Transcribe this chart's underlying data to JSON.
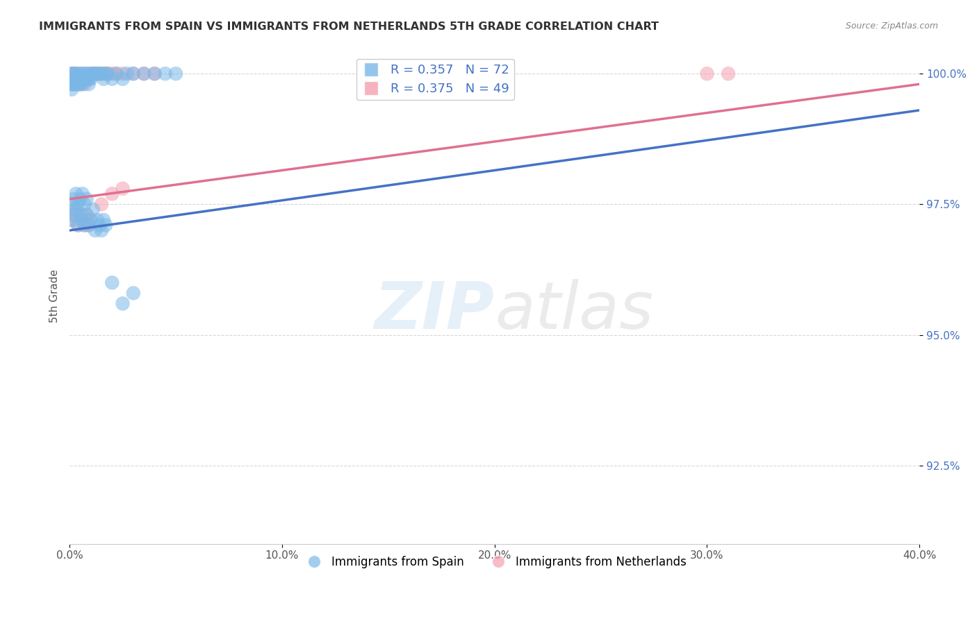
{
  "title": "IMMIGRANTS FROM SPAIN VS IMMIGRANTS FROM NETHERLANDS 5TH GRADE CORRELATION CHART",
  "source": "Source: ZipAtlas.com",
  "ylabel": "5th Grade",
  "xlim": [
    0.0,
    0.4
  ],
  "ylim": [
    0.91,
    1.005
  ],
  "xtick_labels": [
    "0.0%",
    "10.0%",
    "20.0%",
    "30.0%",
    "40.0%"
  ],
  "xtick_vals": [
    0.0,
    0.1,
    0.2,
    0.3,
    0.4
  ],
  "ytick_labels": [
    "92.5%",
    "95.0%",
    "97.5%",
    "100.0%"
  ],
  "ytick_vals": [
    0.925,
    0.95,
    0.975,
    1.0
  ],
  "spain_color": "#7ab8e8",
  "netherlands_color": "#f4a0b0",
  "spain_line_color": "#4472c4",
  "netherlands_line_color": "#e07090",
  "spain_R": 0.357,
  "spain_N": 72,
  "netherlands_R": 0.375,
  "netherlands_N": 49,
  "legend_spain_label": "Immigrants from Spain",
  "legend_netherlands_label": "Immigrants from Netherlands",
  "watermark_zip": "ZIP",
  "watermark_atlas": "atlas",
  "spain_x": [
    0.001,
    0.001,
    0.001,
    0.001,
    0.002,
    0.002,
    0.002,
    0.002,
    0.003,
    0.003,
    0.003,
    0.004,
    0.004,
    0.004,
    0.005,
    0.005,
    0.005,
    0.006,
    0.006,
    0.007,
    0.007,
    0.008,
    0.008,
    0.009,
    0.009,
    0.01,
    0.01,
    0.011,
    0.012,
    0.013,
    0.014,
    0.015,
    0.016,
    0.017,
    0.018,
    0.02,
    0.022,
    0.025,
    0.027,
    0.03,
    0.035,
    0.04,
    0.045,
    0.05,
    0.001,
    0.002,
    0.003,
    0.004,
    0.005,
    0.006,
    0.007,
    0.008,
    0.001,
    0.002,
    0.003,
    0.004,
    0.005,
    0.006,
    0.007,
    0.008,
    0.009,
    0.01,
    0.011,
    0.012,
    0.013,
    0.014,
    0.015,
    0.016,
    0.017,
    0.02,
    0.025,
    0.03
  ],
  "spain_y": [
    0.999,
    0.998,
    0.997,
    1.0,
    0.999,
    0.998,
    1.0,
    0.999,
    0.999,
    0.998,
    1.0,
    0.999,
    0.998,
    1.0,
    0.999,
    0.998,
    1.0,
    0.999,
    0.998,
    0.999,
    1.0,
    0.999,
    1.0,
    0.998,
    0.999,
    0.999,
    1.0,
    1.0,
    1.0,
    1.0,
    1.0,
    1.0,
    0.999,
    1.0,
    1.0,
    0.999,
    1.0,
    0.999,
    1.0,
    1.0,
    1.0,
    1.0,
    1.0,
    1.0,
    0.975,
    0.976,
    0.977,
    0.975,
    0.976,
    0.977,
    0.975,
    0.976,
    0.972,
    0.973,
    0.974,
    0.971,
    0.973,
    0.972,
    0.971,
    0.973,
    0.971,
    0.972,
    0.974,
    0.97,
    0.972,
    0.971,
    0.97,
    0.972,
    0.971,
    0.96,
    0.956,
    0.958
  ],
  "netherlands_x": [
    0.001,
    0.001,
    0.001,
    0.002,
    0.002,
    0.002,
    0.003,
    0.003,
    0.004,
    0.004,
    0.005,
    0.005,
    0.006,
    0.006,
    0.007,
    0.007,
    0.008,
    0.008,
    0.009,
    0.01,
    0.011,
    0.012,
    0.013,
    0.014,
    0.015,
    0.016,
    0.017,
    0.018,
    0.02,
    0.022,
    0.025,
    0.03,
    0.035,
    0.04,
    0.001,
    0.002,
    0.003,
    0.004,
    0.005,
    0.006,
    0.007,
    0.008,
    0.009,
    0.01,
    0.015,
    0.02,
    0.025,
    0.3,
    0.31
  ],
  "netherlands_y": [
    0.999,
    0.998,
    1.0,
    0.999,
    0.998,
    1.0,
    0.999,
    1.0,
    0.998,
    0.999,
    0.998,
    0.999,
    0.999,
    1.0,
    0.999,
    0.998,
    0.999,
    1.0,
    0.999,
    1.0,
    1.0,
    1.0,
    1.0,
    1.0,
    1.0,
    1.0,
    1.0,
    1.0,
    1.0,
    1.0,
    1.0,
    1.0,
    1.0,
    1.0,
    0.972,
    0.973,
    0.974,
    0.971,
    0.973,
    0.972,
    0.971,
    0.973,
    0.971,
    0.972,
    0.975,
    0.977,
    0.978,
    1.0,
    1.0
  ],
  "spain_trend_x": [
    0.0,
    0.4
  ],
  "spain_trend_y": [
    0.97,
    0.993
  ],
  "netherlands_trend_x": [
    0.0,
    0.4
  ],
  "netherlands_trend_y": [
    0.976,
    0.998
  ]
}
